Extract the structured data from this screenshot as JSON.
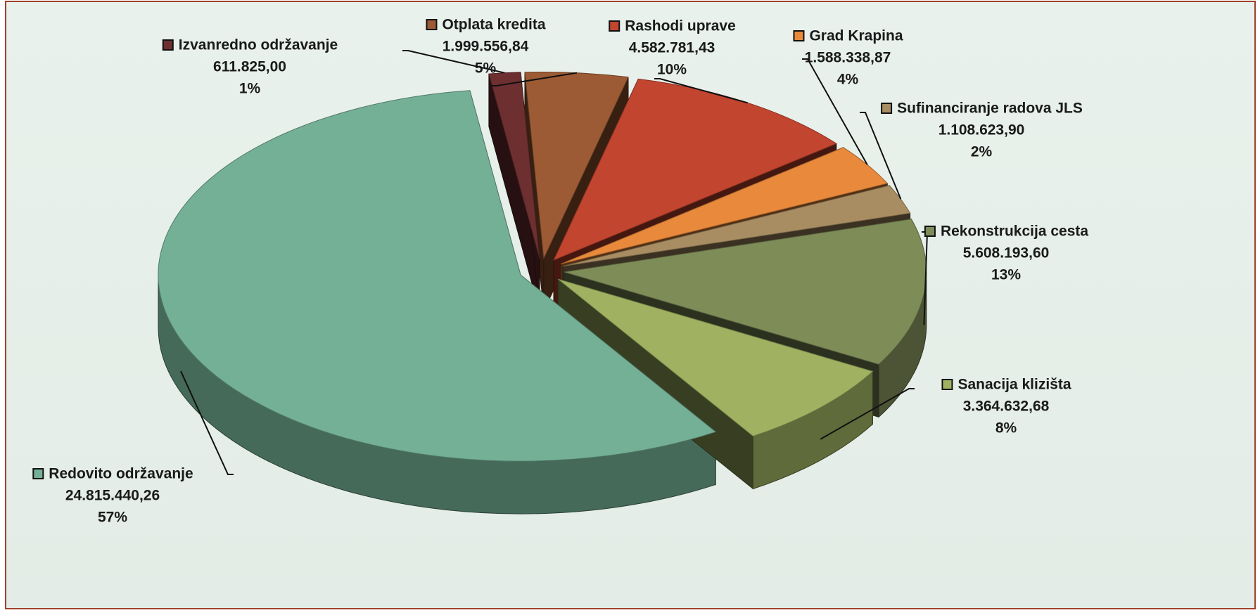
{
  "chart_data": {
    "type": "pie3d",
    "categories": [
      "Otplata kredita",
      "Rashodi uprave",
      "Grad Krapina",
      "Sufinanciranje radova JLS",
      "Rekonstrukcija cesta",
      "Sanacija klizišta",
      "Redovito održavanje",
      "Izvanredno održavanje"
    ],
    "values": [
      1999556.84,
      4582781.43,
      1588338.87,
      1108623.9,
      5608193.6,
      3364632.68,
      24815440.26,
      611825.0
    ],
    "value_labels": [
      "1.999.556,84",
      "4.582.781,43",
      "1.588.338,87",
      "1.108.623,90",
      "5.608.193,60",
      "3.364.632,68",
      "24.815.440,26",
      "611.825,00"
    ],
    "percent_labels": [
      "5%",
      "10%",
      "4%",
      "2%",
      "13%",
      "8%",
      "57%",
      "1%"
    ],
    "colors": [
      "#9c5b34",
      "#c2452f",
      "#e8893c",
      "#a98d62",
      "#7e8c58",
      "#a0b262",
      "#74b096",
      "#6e2f30"
    ]
  }
}
